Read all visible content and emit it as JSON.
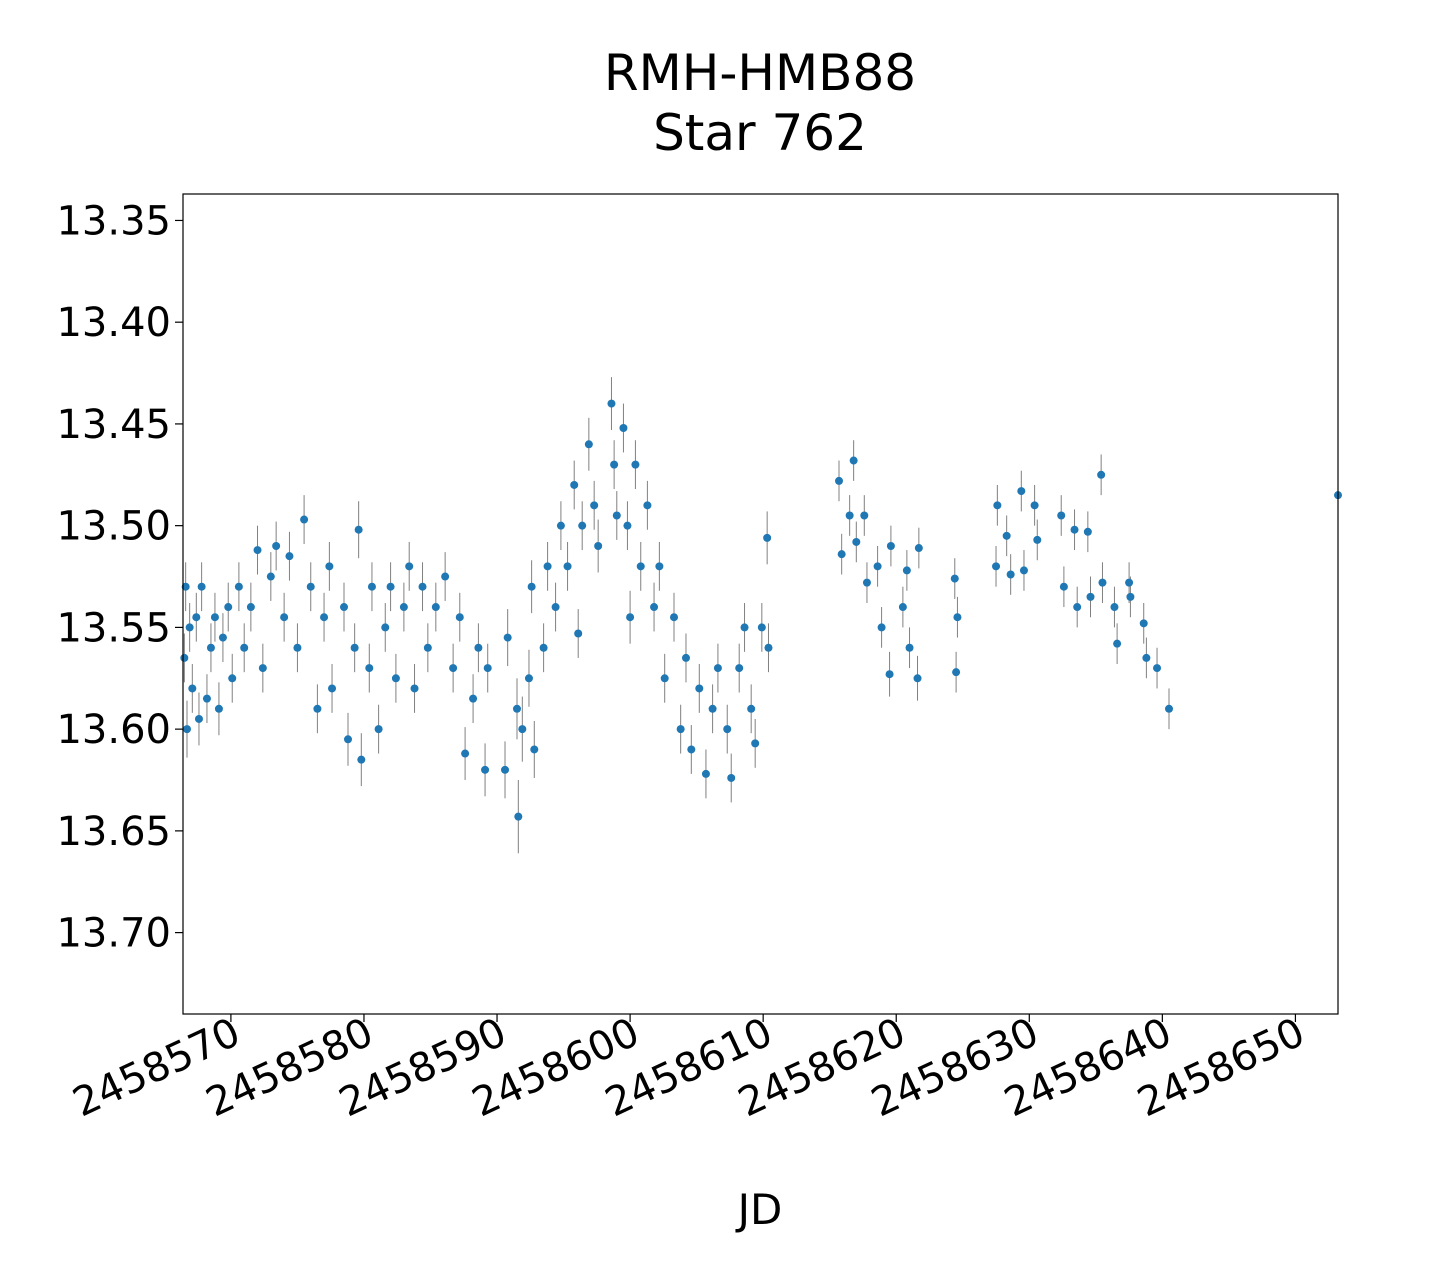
{
  "chart_data": {
    "type": "scatter",
    "title": "RMH-HMB88",
    "subtitle": "Star 762",
    "xlabel": "JD",
    "ylabel": "",
    "xlim": [
      2458566.4,
      2458653.2
    ],
    "ylim": [
      13.74,
      13.337
    ],
    "y_inverted": true,
    "x_ticks": [
      2458570,
      2458580,
      2458590,
      2458600,
      2458610,
      2458620,
      2458630,
      2458640,
      2458650
    ],
    "x_tick_labels": [
      "2458570",
      "2458580",
      "2458590",
      "2458600",
      "2458610",
      "2458620",
      "2458630",
      "2458640",
      "2458650"
    ],
    "y_ticks": [
      13.35,
      13.4,
      13.45,
      13.5,
      13.55,
      13.6,
      13.65,
      13.7
    ],
    "y_tick_labels": [
      "13.35",
      "13.40",
      "13.45",
      "13.50",
      "13.55",
      "13.60",
      "13.65",
      "13.70"
    ],
    "grid": false,
    "marker_color": "#1f77b4",
    "errorbar_color": "#808080",
    "series": [
      {
        "points": [
          [
            2458566.5,
            13.565,
            0.012
          ],
          [
            2458566.6,
            13.53,
            0.012
          ],
          [
            2458566.7,
            13.6,
            0.014
          ],
          [
            2458566.9,
            13.55,
            0.012
          ],
          [
            2458567.1,
            13.58,
            0.012
          ],
          [
            2458567.4,
            13.545,
            0.012
          ],
          [
            2458567.6,
            13.595,
            0.013
          ],
          [
            2458567.8,
            13.53,
            0.012
          ],
          [
            2458568.2,
            13.585,
            0.012
          ],
          [
            2458568.5,
            13.56,
            0.012
          ],
          [
            2458568.8,
            13.545,
            0.012
          ],
          [
            2458569.1,
            13.59,
            0.013
          ],
          [
            2458569.4,
            13.555,
            0.012
          ],
          [
            2458569.8,
            13.54,
            0.012
          ],
          [
            2458570.1,
            13.575,
            0.012
          ],
          [
            2458570.6,
            13.53,
            0.012
          ],
          [
            2458571.0,
            13.56,
            0.012
          ],
          [
            2458571.5,
            13.54,
            0.012
          ],
          [
            2458572.0,
            13.512,
            0.012
          ],
          [
            2458572.4,
            13.57,
            0.012
          ],
          [
            2458573.0,
            13.525,
            0.012
          ],
          [
            2458573.4,
            13.51,
            0.012
          ],
          [
            2458574.0,
            13.545,
            0.012
          ],
          [
            2458574.4,
            13.515,
            0.012
          ],
          [
            2458575.0,
            13.56,
            0.012
          ],
          [
            2458575.5,
            13.497,
            0.012
          ],
          [
            2458576.0,
            13.53,
            0.012
          ],
          [
            2458576.5,
            13.59,
            0.012
          ],
          [
            2458577.0,
            13.545,
            0.012
          ],
          [
            2458577.4,
            13.52,
            0.012
          ],
          [
            2458577.6,
            13.58,
            0.012
          ],
          [
            2458578.5,
            13.54,
            0.012
          ],
          [
            2458578.8,
            13.605,
            0.013
          ],
          [
            2458579.3,
            13.56,
            0.012
          ],
          [
            2458579.6,
            13.502,
            0.014
          ],
          [
            2458579.8,
            13.615,
            0.013
          ],
          [
            2458580.4,
            13.57,
            0.012
          ],
          [
            2458580.6,
            13.53,
            0.012
          ],
          [
            2458581.1,
            13.6,
            0.012
          ],
          [
            2458581.6,
            13.55,
            0.012
          ],
          [
            2458582.0,
            13.53,
            0.012
          ],
          [
            2458582.4,
            13.575,
            0.012
          ],
          [
            2458583.0,
            13.54,
            0.012
          ],
          [
            2458583.4,
            13.52,
            0.012
          ],
          [
            2458583.8,
            13.58,
            0.012
          ],
          [
            2458584.4,
            13.53,
            0.012
          ],
          [
            2458584.8,
            13.56,
            0.012
          ],
          [
            2458585.4,
            13.54,
            0.012
          ],
          [
            2458586.1,
            13.525,
            0.012
          ],
          [
            2458586.7,
            13.57,
            0.012
          ],
          [
            2458587.2,
            13.545,
            0.012
          ],
          [
            2458587.6,
            13.612,
            0.013
          ],
          [
            2458588.2,
            13.585,
            0.012
          ],
          [
            2458588.6,
            13.56,
            0.012
          ],
          [
            2458589.1,
            13.62,
            0.013
          ],
          [
            2458589.3,
            13.57,
            0.012
          ],
          [
            2458590.6,
            13.62,
            0.014
          ],
          [
            2458590.8,
            13.555,
            0.014
          ],
          [
            2458591.5,
            13.59,
            0.015
          ],
          [
            2458591.6,
            13.643,
            0.018
          ],
          [
            2458591.9,
            13.6,
            0.016
          ],
          [
            2458592.4,
            13.575,
            0.014
          ],
          [
            2458592.6,
            13.53,
            0.013
          ],
          [
            2458592.8,
            13.61,
            0.014
          ],
          [
            2458593.5,
            13.56,
            0.012
          ],
          [
            2458593.8,
            13.52,
            0.012
          ],
          [
            2458594.4,
            13.54,
            0.012
          ],
          [
            2458594.8,
            13.5,
            0.012
          ],
          [
            2458595.3,
            13.52,
            0.012
          ],
          [
            2458595.8,
            13.48,
            0.012
          ],
          [
            2458596.1,
            13.553,
            0.012
          ],
          [
            2458596.4,
            13.5,
            0.012
          ],
          [
            2458596.9,
            13.46,
            0.013
          ],
          [
            2458597.3,
            13.49,
            0.012
          ],
          [
            2458597.6,
            13.51,
            0.013
          ],
          [
            2458598.6,
            13.44,
            0.013
          ],
          [
            2458598.8,
            13.47,
            0.012
          ],
          [
            2458599.0,
            13.495,
            0.012
          ],
          [
            2458599.5,
            13.452,
            0.012
          ],
          [
            2458599.8,
            13.5,
            0.012
          ],
          [
            2458600.0,
            13.545,
            0.013
          ],
          [
            2458600.4,
            13.47,
            0.012
          ],
          [
            2458600.8,
            13.52,
            0.012
          ],
          [
            2458601.3,
            13.49,
            0.012
          ],
          [
            2458601.8,
            13.54,
            0.012
          ],
          [
            2458602.2,
            13.52,
            0.012
          ],
          [
            2458602.6,
            13.575,
            0.012
          ],
          [
            2458603.3,
            13.545,
            0.012
          ],
          [
            2458603.8,
            13.6,
            0.012
          ],
          [
            2458604.2,
            13.565,
            0.012
          ],
          [
            2458604.6,
            13.61,
            0.012
          ],
          [
            2458605.2,
            13.58,
            0.012
          ],
          [
            2458605.7,
            13.622,
            0.012
          ],
          [
            2458606.2,
            13.59,
            0.012
          ],
          [
            2458606.6,
            13.57,
            0.012
          ],
          [
            2458607.3,
            13.6,
            0.012
          ],
          [
            2458607.6,
            13.624,
            0.012
          ],
          [
            2458608.2,
            13.57,
            0.012
          ],
          [
            2458608.6,
            13.55,
            0.012
          ],
          [
            2458609.1,
            13.59,
            0.012
          ],
          [
            2458609.4,
            13.607,
            0.012
          ],
          [
            2458609.9,
            13.55,
            0.012
          ],
          [
            2458610.3,
            13.506,
            0.013
          ],
          [
            2458610.4,
            13.56,
            0.012
          ],
          [
            2458615.7,
            13.478,
            0.01
          ],
          [
            2458615.9,
            13.514,
            0.01
          ],
          [
            2458616.5,
            13.495,
            0.01
          ],
          [
            2458616.8,
            13.468,
            0.01
          ],
          [
            2458617.0,
            13.508,
            0.01
          ],
          [
            2458617.6,
            13.495,
            0.01
          ],
          [
            2458617.8,
            13.528,
            0.01
          ],
          [
            2458618.6,
            13.52,
            0.01
          ],
          [
            2458618.9,
            13.55,
            0.01
          ],
          [
            2458619.5,
            13.573,
            0.011
          ],
          [
            2458619.6,
            13.51,
            0.01
          ],
          [
            2458620.5,
            13.54,
            0.01
          ],
          [
            2458620.8,
            13.522,
            0.01
          ],
          [
            2458621.0,
            13.56,
            0.01
          ],
          [
            2458621.6,
            13.575,
            0.011
          ],
          [
            2458621.7,
            13.511,
            0.01
          ],
          [
            2458624.4,
            13.526,
            0.01
          ],
          [
            2458624.5,
            13.572,
            0.01
          ],
          [
            2458624.6,
            13.545,
            0.01
          ],
          [
            2458627.5,
            13.52,
            0.01
          ],
          [
            2458627.6,
            13.49,
            0.01
          ],
          [
            2458628.3,
            13.505,
            0.01
          ],
          [
            2458628.6,
            13.524,
            0.01
          ],
          [
            2458629.4,
            13.483,
            0.01
          ],
          [
            2458629.6,
            13.522,
            0.01
          ],
          [
            2458630.4,
            13.49,
            0.01
          ],
          [
            2458630.6,
            13.507,
            0.01
          ],
          [
            2458632.4,
            13.495,
            0.01
          ],
          [
            2458632.6,
            13.53,
            0.01
          ],
          [
            2458633.4,
            13.502,
            0.01
          ],
          [
            2458633.6,
            13.54,
            0.01
          ],
          [
            2458634.4,
            13.503,
            0.01
          ],
          [
            2458634.6,
            13.535,
            0.01
          ],
          [
            2458635.4,
            13.475,
            0.01
          ],
          [
            2458635.5,
            13.528,
            0.01
          ],
          [
            2458636.4,
            13.54,
            0.01
          ],
          [
            2458636.6,
            13.558,
            0.01
          ],
          [
            2458637.5,
            13.528,
            0.01
          ],
          [
            2458637.6,
            13.535,
            0.01
          ],
          [
            2458638.6,
            13.548,
            0.01
          ],
          [
            2458638.8,
            13.565,
            0.01
          ],
          [
            2458639.6,
            13.57,
            0.01
          ],
          [
            2458640.5,
            13.59,
            0.01
          ],
          [
            2458653.2,
            13.485,
            0.01
          ]
        ]
      }
    ]
  }
}
